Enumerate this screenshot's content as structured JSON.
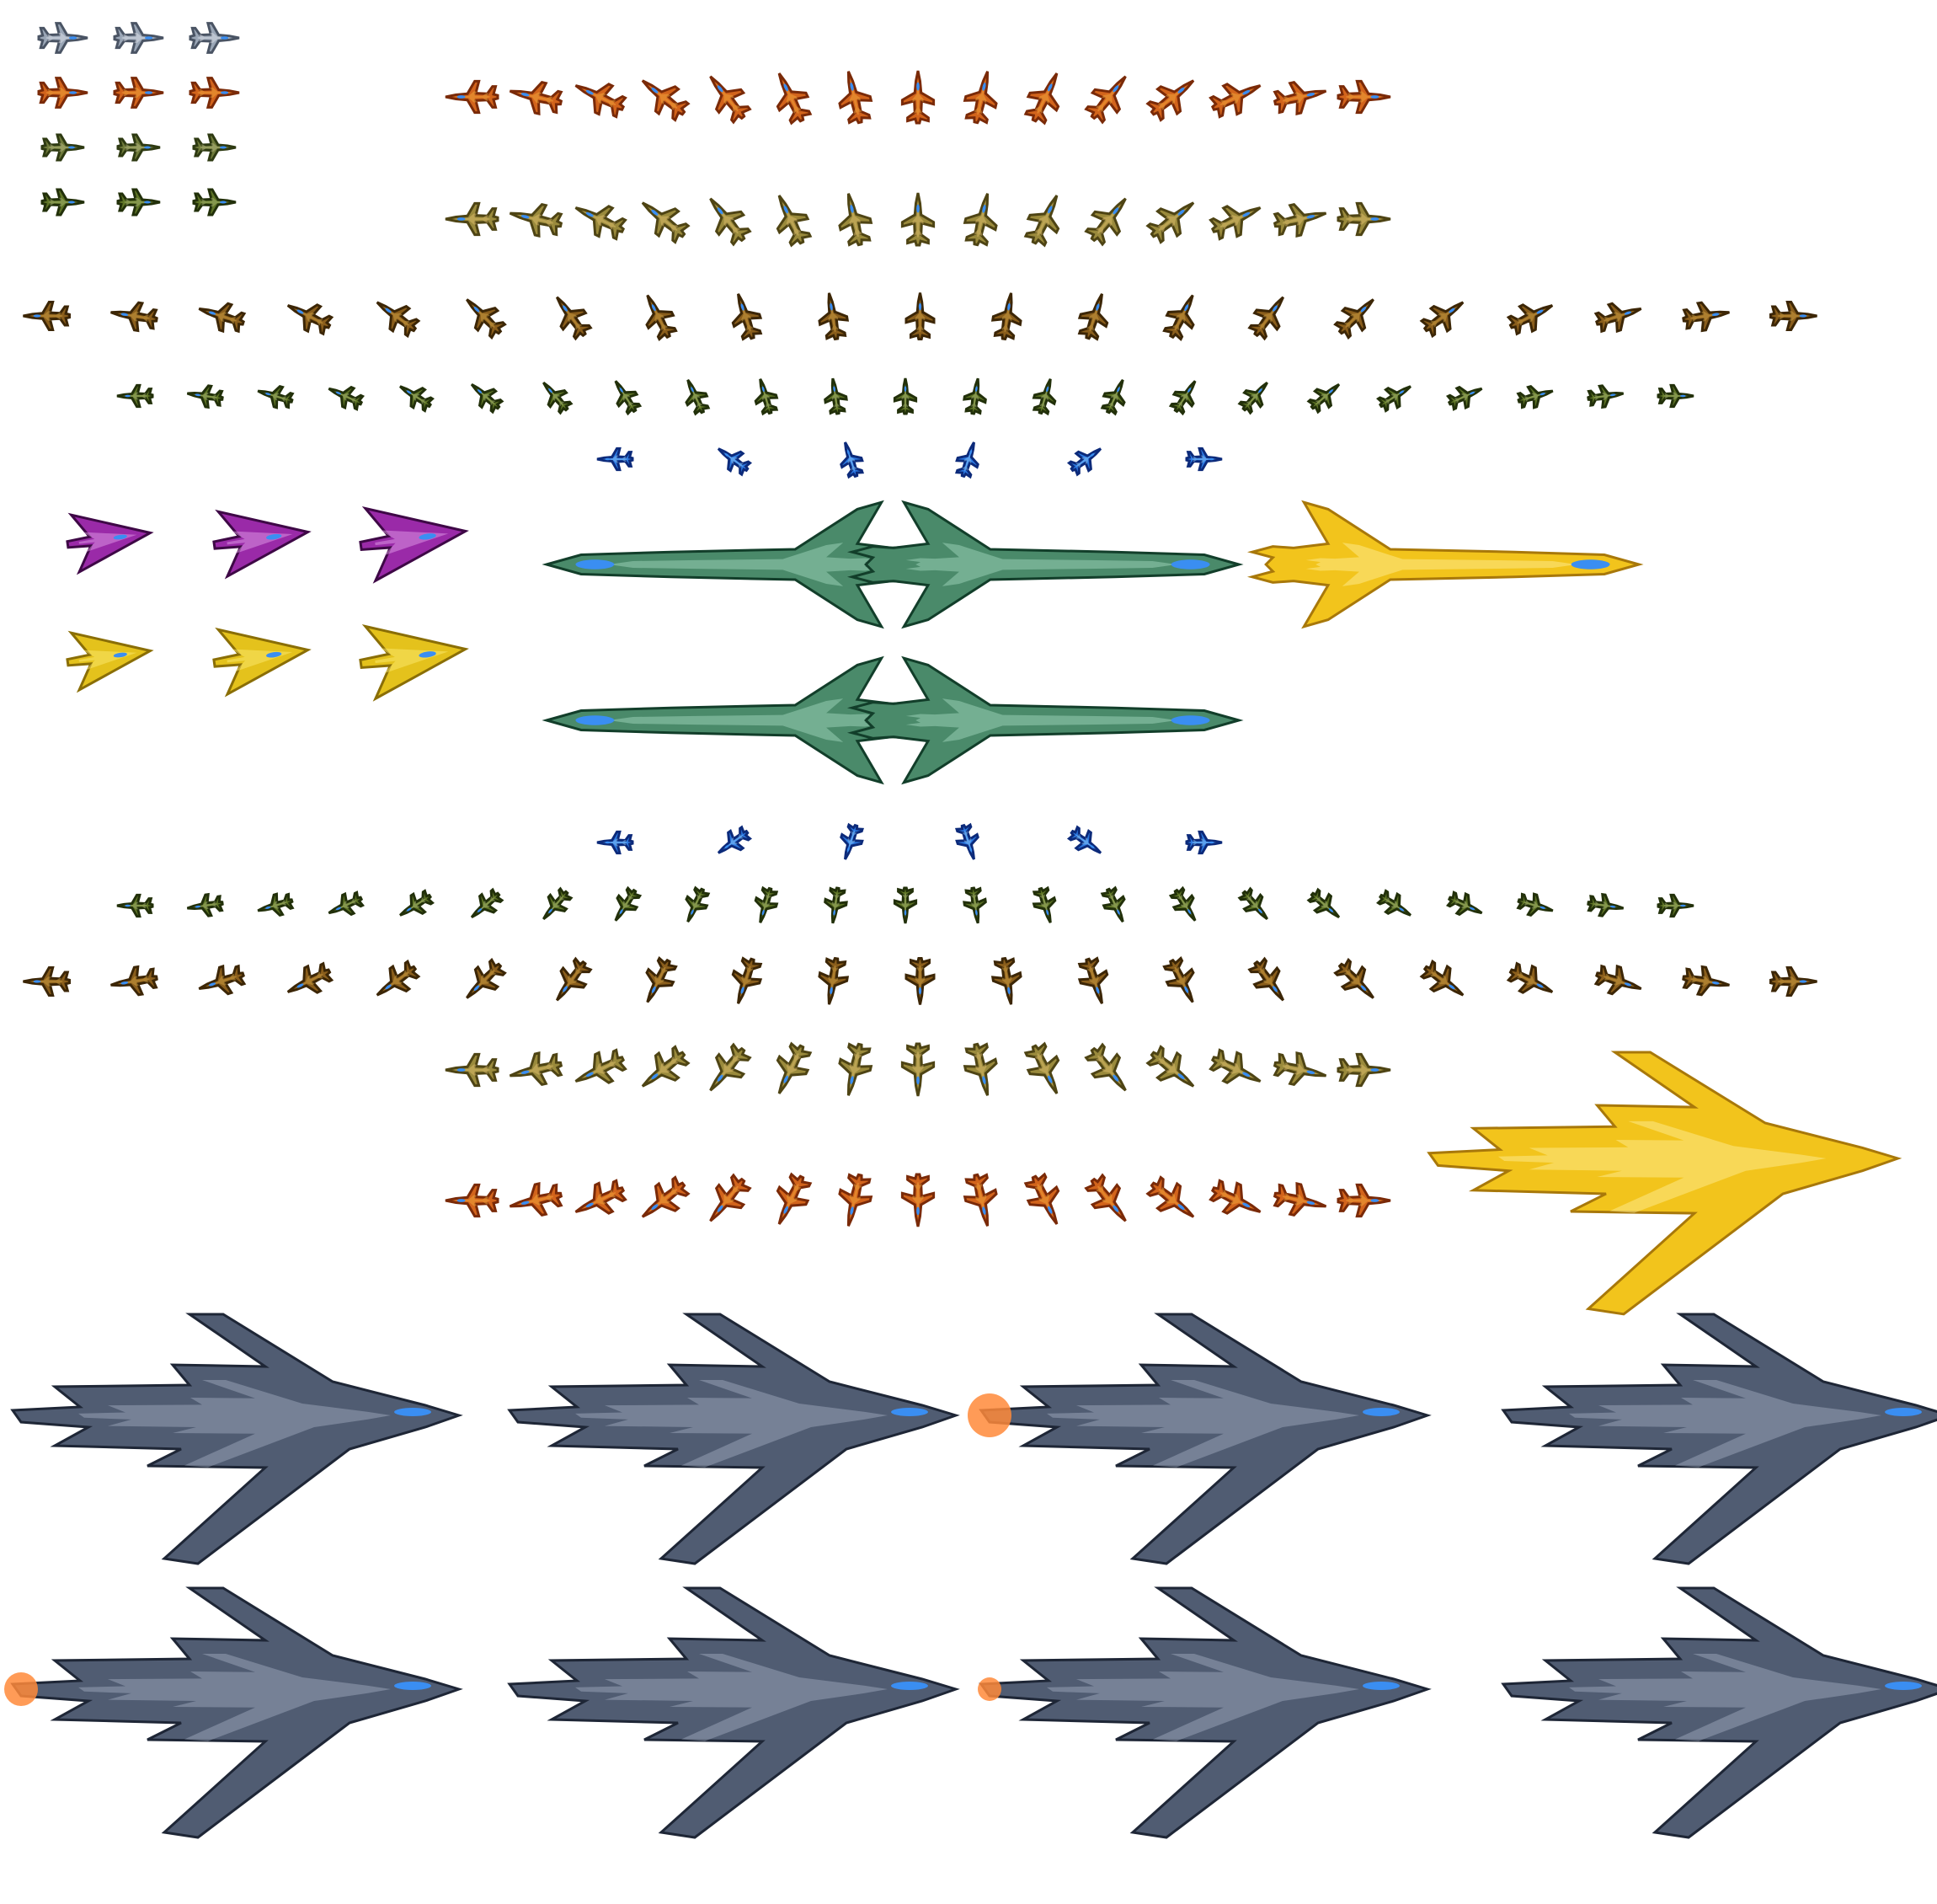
{
  "sheet": {
    "title": "",
    "background": "#ffffff"
  },
  "palettes": {
    "silver": [
      "#e8ecf2",
      "#9aa6b6",
      "#4a5464"
    ],
    "orange": [
      "#f6b040",
      "#d2641c",
      "#7a2a08"
    ],
    "camo_green": [
      "#c8c890",
      "#6e7a3a",
      "#2e3a12"
    ],
    "tan_camo": [
      "#e6c470",
      "#9a8a3c",
      "#4e4414"
    ],
    "brown": [
      "#d8a848",
      "#8a5e1c",
      "#3c2606"
    ],
    "olive": [
      "#b6c47e",
      "#5e7426",
      "#22300a"
    ],
    "blue": [
      "#9ad4ff",
      "#2c78e0",
      "#0c2a7a"
    ],
    "purple": [
      "#e8a8f0",
      "#9a2aa8",
      "#3e0846"
    ],
    "yellow": [
      "#fff07a",
      "#e4c21c",
      "#8a6e06"
    ],
    "teal_green": [
      "#a8dcc4",
      "#4a8a6a",
      "#123e2a"
    ],
    "gold": [
      "#fff2a0",
      "#f2c41c",
      "#a8780a"
    ],
    "stealth_grey": [
      "#a4b0c4",
      "#505c72",
      "#1e2636"
    ],
    "canopy_blue": "#3a8ef2",
    "exhaust_fire": "#ff8a3a"
  },
  "sprites": {
    "small_jets_grid": [
      {
        "rows": 4,
        "cols": 3,
        "palettes": [
          "silver",
          "orange",
          "camo_green",
          "olive"
        ]
      }
    ],
    "rotation_rows": [
      {
        "name": "orange-fighter-rotation-top",
        "palette": "orange",
        "frames": 15
      },
      {
        "name": "tan-fighter-rotation-top",
        "palette": "tan_camo",
        "frames": 15
      },
      {
        "name": "brown-fighter-rotation-upper",
        "palette": "brown",
        "frames": 21
      },
      {
        "name": "olive-fighter-rotation-upper",
        "palette": "olive",
        "frames": 23
      },
      {
        "name": "blue-fighter-rotation-upper",
        "palette": "blue",
        "frames": 6
      },
      {
        "name": "blue-fighter-rotation-lower",
        "palette": "blue",
        "frames": 6
      },
      {
        "name": "olive-fighter-rotation-lower",
        "palette": "olive",
        "frames": 23
      },
      {
        "name": "brown-fighter-rotation-lower",
        "palette": "brown",
        "frames": 21
      },
      {
        "name": "tan-fighter-rotation-bottom",
        "palette": "tan_camo",
        "frames": 15
      },
      {
        "name": "orange-fighter-rotation-bottom",
        "palette": "orange",
        "frames": 15
      }
    ],
    "stealth_fighters": [
      {
        "palette": "purple",
        "frames": 3
      },
      {
        "palette": "yellow",
        "frames": 3
      }
    ],
    "large_jets": [
      {
        "palette": "teal_green",
        "count": 4
      },
      {
        "palette": "gold",
        "count": 1
      }
    ],
    "golden_bomber": {
      "palette": "gold",
      "count": 1
    },
    "stealth_bombers": {
      "palette": "stealth_grey",
      "rows": 2,
      "cols": 4,
      "damage_frames_with_fire": [
        2,
        4,
        6
      ]
    }
  }
}
